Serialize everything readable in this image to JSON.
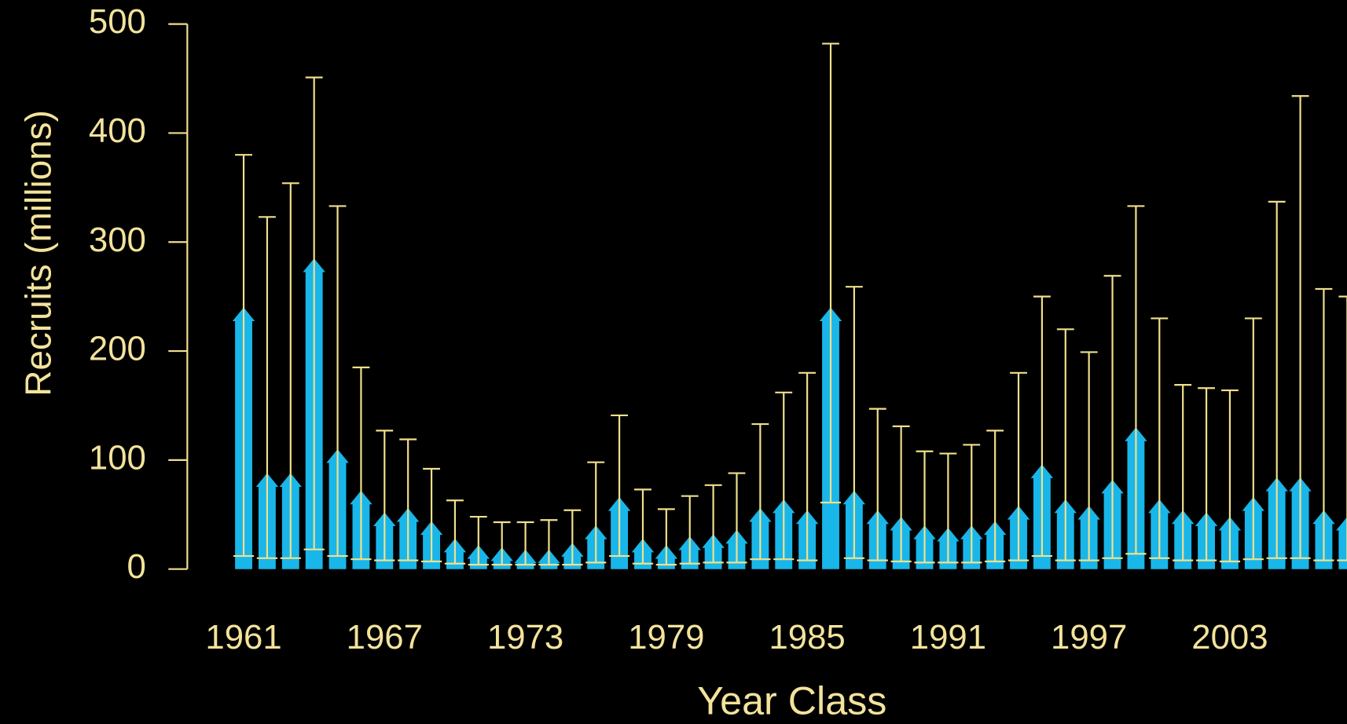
{
  "chart_data": {
    "type": "bar",
    "x_label": "Year Class",
    "y_label": "Recruits (millions)",
    "x": [
      1961,
      1962,
      1963,
      1964,
      1965,
      1966,
      1967,
      1968,
      1969,
      1970,
      1971,
      1972,
      1973,
      1974,
      1975,
      1976,
      1977,
      1978,
      1979,
      1980,
      1981,
      1982,
      1983,
      1984,
      1985,
      1986,
      1987,
      1988,
      1989,
      1990,
      1991,
      1992,
      1993,
      1994,
      1995,
      1996,
      1997,
      1998,
      1999,
      2000,
      2001,
      2002,
      2003,
      2004,
      2005,
      2006,
      2007,
      2008
    ],
    "series": [
      {
        "color": "#19b6ea",
        "error_color": "#f0e08c",
        "values": [
          240,
          88,
          88,
          285,
          110,
          72,
          52,
          56,
          44,
          28,
          22,
          20,
          18,
          18,
          24,
          40,
          66,
          28,
          22,
          30,
          32,
          36,
          56,
          64,
          54,
          240,
          72,
          54,
          48,
          40,
          38,
          40,
          44,
          58,
          96,
          64,
          58,
          82,
          130,
          64,
          54,
          52,
          48,
          66,
          84,
          84,
          54,
          48
        ],
        "upper": [
          380,
          323,
          354,
          451,
          333,
          185,
          127,
          119,
          92,
          63,
          48,
          43,
          43,
          45,
          54,
          98,
          141,
          73,
          55,
          67,
          77,
          88,
          133,
          162,
          180,
          482,
          259,
          147,
          131,
          108,
          106,
          114,
          127,
          180,
          250,
          220,
          199,
          269,
          333,
          230,
          169,
          166,
          164,
          230,
          337,
          434,
          257,
          250
        ],
        "lower": [
          12,
          10,
          10,
          18,
          12,
          9,
          8,
          8,
          7,
          5,
          4,
          4,
          4,
          4,
          4,
          6,
          12,
          5,
          4,
          5,
          6,
          6,
          9,
          9,
          8,
          61,
          10,
          8,
          7,
          6,
          6,
          6,
          7,
          8,
          12,
          8,
          8,
          10,
          14,
          10,
          8,
          8,
          7,
          9,
          10,
          10,
          8,
          8
        ]
      }
    ],
    "xlim": [
      1958.6,
      2008.5
    ],
    "xticks": [
      1961,
      1967,
      1973,
      1979,
      1985,
      1991,
      1997,
      2003
    ],
    "ylim": [
      0,
      500
    ],
    "yticks": [
      0,
      100,
      200,
      300,
      400,
      500
    ]
  }
}
